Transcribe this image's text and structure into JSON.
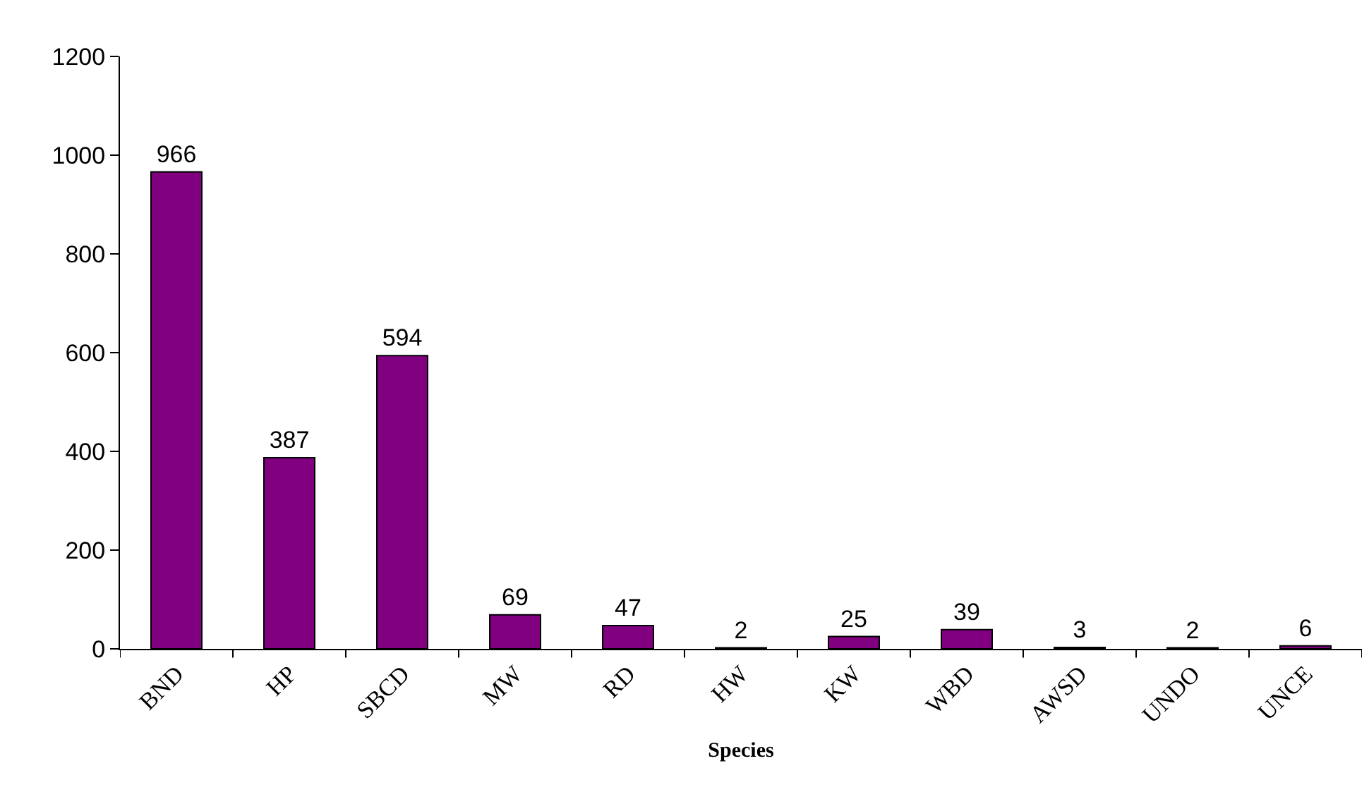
{
  "chart_data": {
    "type": "bar",
    "xlabel": "Species",
    "categories": [
      "BND",
      "HP",
      "SBCD",
      "MW",
      "RD",
      "HW",
      "KW",
      "WBD",
      "AWSD",
      "UNDO",
      "UNCE"
    ],
    "values": [
      966,
      387,
      594,
      69,
      47,
      2,
      25,
      39,
      3,
      2,
      6
    ],
    "color": "#800080",
    "ylim": [
      0,
      1200
    ],
    "yticks": [
      0,
      200,
      400,
      600,
      800,
      1000,
      1200
    ],
    "data_labels": true
  }
}
